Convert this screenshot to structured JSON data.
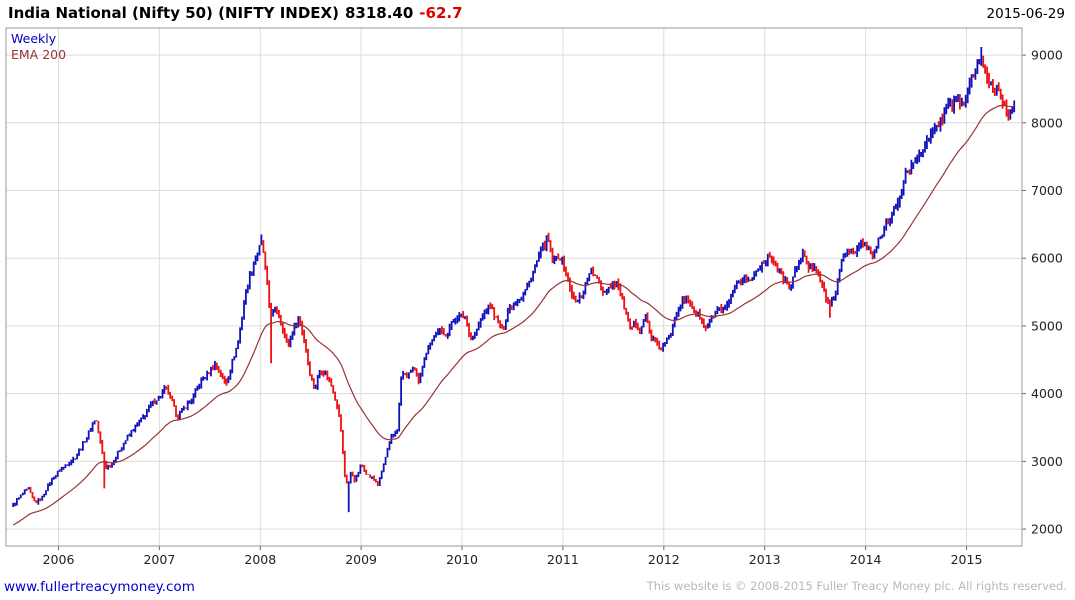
{
  "header": {
    "title": "India National (Nifty 50) (NIFTY INDEX)",
    "price": "8318.40",
    "change": "-62.7",
    "date": "2015-06-29"
  },
  "legend": {
    "timeframe": "Weekly",
    "overlay": "EMA 200"
  },
  "footer": {
    "site": "www.fullertreacymoney.com",
    "copyright": "This website is © 2008-2015 Fuller Treacy Money plc. All rights reserved."
  },
  "colors": {
    "up": "#1111bb",
    "down": "#ee1111",
    "ema": "#993333",
    "grid": "#dcdcdc",
    "axis_text": "#222222",
    "border": "#999999",
    "tick": "#666666"
  },
  "chart_data": {
    "type": "candlestick",
    "timeframe": "weekly",
    "title": "India National (Nifty 50) (NIFTY INDEX)",
    "last_price": 8318.4,
    "change": -62.7,
    "as_of": "2015-06-29",
    "overlay": "EMA 200",
    "ema_span_weeks": 40,
    "grid": true,
    "xlim": [
      2005.48,
      2015.55
    ],
    "ylim": [
      1750,
      9400
    ],
    "x_ticks": [
      2006,
      2007,
      2008,
      2009,
      2010,
      2011,
      2012,
      2013,
      2014,
      2015
    ],
    "y_ticks": [
      2000,
      3000,
      4000,
      5000,
      6000,
      7000,
      8000,
      9000
    ],
    "anchors": [
      [
        2005.55,
        2350
      ],
      [
        2005.63,
        2500
      ],
      [
        2005.7,
        2600
      ],
      [
        2005.77,
        2380
      ],
      [
        2005.84,
        2480
      ],
      [
        2005.92,
        2700
      ],
      [
        2006.0,
        2850
      ],
      [
        2006.08,
        2950
      ],
      [
        2006.16,
        3050
      ],
      [
        2006.24,
        3250
      ],
      [
        2006.31,
        3450
      ],
      [
        2006.37,
        3650
      ],
      [
        2006.43,
        3150
      ],
      [
        2006.47,
        2900
      ],
      [
        2006.52,
        2950
      ],
      [
        2006.6,
        3150
      ],
      [
        2006.68,
        3350
      ],
      [
        2006.76,
        3500
      ],
      [
        2006.84,
        3650
      ],
      [
        2006.92,
        3850
      ],
      [
        2007.0,
        3950
      ],
      [
        2007.06,
        4100
      ],
      [
        2007.12,
        3900
      ],
      [
        2007.18,
        3650
      ],
      [
        2007.25,
        3800
      ],
      [
        2007.32,
        3900
      ],
      [
        2007.4,
        4150
      ],
      [
        2007.48,
        4300
      ],
      [
        2007.55,
        4450
      ],
      [
        2007.62,
        4250
      ],
      [
        2007.66,
        4150
      ],
      [
        2007.72,
        4450
      ],
      [
        2007.78,
        4750
      ],
      [
        2007.84,
        5350
      ],
      [
        2007.9,
        5750
      ],
      [
        2007.96,
        6050
      ],
      [
        2008.02,
        6250
      ],
      [
        2008.06,
        5700
      ],
      [
        2008.1,
        5150
      ],
      [
        2008.15,
        5250
      ],
      [
        2008.21,
        5050
      ],
      [
        2008.27,
        4700
      ],
      [
        2008.33,
        4950
      ],
      [
        2008.38,
        5150
      ],
      [
        2008.44,
        4750
      ],
      [
        2008.5,
        4250
      ],
      [
        2008.54,
        4050
      ],
      [
        2008.59,
        4350
      ],
      [
        2008.65,
        4300
      ],
      [
        2008.71,
        4100
      ],
      [
        2008.76,
        3850
      ],
      [
        2008.8,
        3450
      ],
      [
        2008.84,
        2750
      ],
      [
        2008.87,
        2650
      ],
      [
        2008.9,
        2850
      ],
      [
        2008.94,
        2700
      ],
      [
        2009.0,
        2950
      ],
      [
        2009.06,
        2800
      ],
      [
        2009.12,
        2750
      ],
      [
        2009.17,
        2650
      ],
      [
        2009.23,
        3000
      ],
      [
        2009.3,
        3350
      ],
      [
        2009.36,
        3500
      ],
      [
        2009.4,
        4300
      ],
      [
        2009.46,
        4250
      ],
      [
        2009.52,
        4400
      ],
      [
        2009.57,
        4150
      ],
      [
        2009.63,
        4550
      ],
      [
        2009.7,
        4800
      ],
      [
        2009.77,
        4950
      ],
      [
        2009.83,
        4850
      ],
      [
        2009.9,
        5050
      ],
      [
        2009.96,
        5150
      ],
      [
        2010.03,
        5150
      ],
      [
        2010.09,
        4800
      ],
      [
        2010.15,
        4950
      ],
      [
        2010.22,
        5200
      ],
      [
        2010.28,
        5300
      ],
      [
        2010.34,
        5100
      ],
      [
        2010.4,
        4950
      ],
      [
        2010.46,
        5250
      ],
      [
        2010.53,
        5350
      ],
      [
        2010.6,
        5450
      ],
      [
        2010.67,
        5650
      ],
      [
        2010.74,
        5950
      ],
      [
        2010.8,
        6150
      ],
      [
        2010.85,
        6300
      ],
      [
        2010.9,
        5950
      ],
      [
        2010.96,
        6050
      ],
      [
        2011.02,
        5850
      ],
      [
        2011.08,
        5500
      ],
      [
        2011.13,
        5350
      ],
      [
        2011.2,
        5500
      ],
      [
        2011.27,
        5850
      ],
      [
        2011.33,
        5700
      ],
      [
        2011.4,
        5500
      ],
      [
        2011.47,
        5600
      ],
      [
        2011.53,
        5650
      ],
      [
        2011.58,
        5450
      ],
      [
        2011.62,
        5200
      ],
      [
        2011.66,
        4950
      ],
      [
        2011.72,
        5050
      ],
      [
        2011.77,
        4950
      ],
      [
        2011.82,
        5150
      ],
      [
        2011.87,
        4850
      ],
      [
        2011.92,
        4750
      ],
      [
        2011.97,
        4650
      ],
      [
        2012.02,
        4750
      ],
      [
        2012.07,
        4900
      ],
      [
        2012.12,
        5200
      ],
      [
        2012.17,
        5350
      ],
      [
        2012.23,
        5400
      ],
      [
        2012.29,
        5250
      ],
      [
        2012.35,
        5150
      ],
      [
        2012.41,
        4950
      ],
      [
        2012.47,
        5100
      ],
      [
        2012.53,
        5250
      ],
      [
        2012.59,
        5200
      ],
      [
        2012.66,
        5400
      ],
      [
        2012.72,
        5600
      ],
      [
        2012.79,
        5700
      ],
      [
        2012.86,
        5650
      ],
      [
        2012.93,
        5850
      ],
      [
        2013.0,
        5950
      ],
      [
        2013.05,
        6050
      ],
      [
        2013.11,
        5900
      ],
      [
        2013.18,
        5700
      ],
      [
        2013.25,
        5550
      ],
      [
        2013.32,
        5900
      ],
      [
        2013.38,
        6050
      ],
      [
        2013.44,
        5850
      ],
      [
        2013.5,
        5900
      ],
      [
        2013.56,
        5650
      ],
      [
        2013.61,
        5400
      ],
      [
        2013.65,
        5300
      ],
      [
        2013.71,
        5550
      ],
      [
        2013.77,
        6000
      ],
      [
        2013.83,
        6150
      ],
      [
        2013.89,
        6050
      ],
      [
        2013.95,
        6250
      ],
      [
        2014.01,
        6150
      ],
      [
        2014.07,
        6050
      ],
      [
        2014.13,
        6250
      ],
      [
        2014.2,
        6500
      ],
      [
        2014.27,
        6700
      ],
      [
        2014.33,
        6800
      ],
      [
        2014.39,
        7250
      ],
      [
        2014.46,
        7350
      ],
      [
        2014.52,
        7550
      ],
      [
        2014.58,
        7650
      ],
      [
        2014.64,
        7800
      ],
      [
        2014.7,
        7950
      ],
      [
        2014.76,
        8050
      ],
      [
        2014.82,
        8350
      ],
      [
        2014.87,
        8250
      ],
      [
        2014.92,
        8350
      ],
      [
        2014.98,
        8250
      ],
      [
        2015.04,
        8650
      ],
      [
        2015.1,
        8800
      ],
      [
        2015.15,
        8950
      ],
      [
        2015.21,
        8650
      ],
      [
        2015.27,
        8500
      ],
      [
        2015.32,
        8550
      ],
      [
        2015.37,
        8250
      ],
      [
        2015.42,
        8050
      ],
      [
        2015.46,
        8250
      ],
      [
        2015.49,
        8318.4
      ]
    ],
    "spikes": [
      {
        "t": 2006.45,
        "low": 2600
      },
      {
        "t": 2008.02,
        "high": 6350
      },
      {
        "t": 2008.1,
        "low": 4450
      },
      {
        "t": 2008.87,
        "low": 2250
      },
      {
        "t": 2010.85,
        "high": 6340
      },
      {
        "t": 2013.65,
        "low": 5120
      },
      {
        "t": 2015.15,
        "high": 9120
      }
    ]
  }
}
